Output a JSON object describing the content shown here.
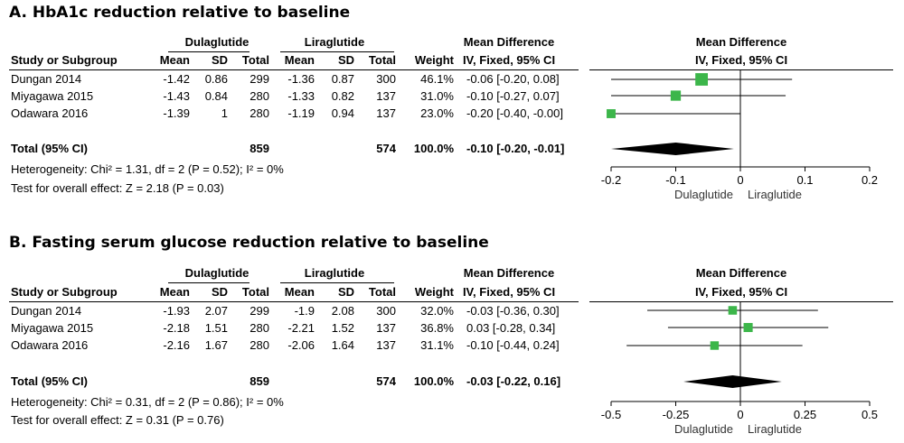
{
  "headers": {
    "group1": "Dulaglutide",
    "group2": "Liraglutide",
    "study": "Study or Subgroup",
    "mean": "Mean",
    "sd": "SD",
    "total": "Total",
    "weight": "Weight",
    "md_title": "Mean Difference",
    "md_method": "IV, Fixed, 95% CI",
    "total_row_label": "Total (95% CI)"
  },
  "chart_data": [
    {
      "type": "forest",
      "title": "A.  HbA1c reduction relative to baseline",
      "studies": [
        {
          "name": "Dungan 2014",
          "d_mean": "-1.42",
          "d_sd": "0.86",
          "d_total": "299",
          "l_mean": "-1.36",
          "l_sd": "0.87",
          "l_total": "300",
          "weight": "46.1%",
          "ci_text": "-0.06 [-0.20, 0.08]",
          "md": -0.06,
          "lo": -0.2,
          "hi": 0.08,
          "w": 46.1
        },
        {
          "name": "Miyagawa 2015",
          "d_mean": "-1.43",
          "d_sd": "0.84",
          "d_total": "280",
          "l_mean": "-1.33",
          "l_sd": "0.82",
          "l_total": "137",
          "weight": "31.0%",
          "ci_text": "-0.10 [-0.27, 0.07]",
          "md": -0.1,
          "lo": -0.27,
          "hi": 0.07,
          "w": 31.0
        },
        {
          "name": "Odawara 2016",
          "d_mean": "-1.39",
          "d_sd": "1",
          "d_total": "280",
          "l_mean": "-1.19",
          "l_sd": "0.94",
          "l_total": "137",
          "weight": "23.0%",
          "ci_text": "-0.20 [-0.40, -0.00]",
          "md": -0.2,
          "lo": -0.4,
          "hi": 0.0,
          "w": 23.0
        }
      ],
      "total": {
        "d_total": "859",
        "l_total": "574",
        "weight": "100.0%",
        "ci_text": "-0.10 [-0.20, -0.01]",
        "md": -0.1,
        "lo": -0.2,
        "hi": -0.01
      },
      "heterogeneity": "Heterogeneity: Chi² = 1.31, df = 2 (P = 0.52); I² = 0%",
      "overall_effect": "Test for overall effect: Z = 2.18 (P = 0.03)",
      "xlim": [
        -0.2,
        0.2
      ],
      "ticks": [
        -0.2,
        -0.1,
        0,
        0.1,
        0.2
      ],
      "tick_labels": [
        "-0.2",
        "-0.1",
        "0",
        "0.1",
        "0.2"
      ],
      "favours_left": "Dulaglutide",
      "favours_right": "Liraglutide"
    },
    {
      "type": "forest",
      "title": "B.  Fasting serum glucose reduction relative to baseline",
      "studies": [
        {
          "name": "Dungan 2014",
          "d_mean": "-1.93",
          "d_sd": "2.07",
          "d_total": "299",
          "l_mean": "-1.9",
          "l_sd": "2.08",
          "l_total": "300",
          "weight": "32.0%",
          "ci_text": "-0.03 [-0.36, 0.30]",
          "md": -0.03,
          "lo": -0.36,
          "hi": 0.3,
          "w": 32.0
        },
        {
          "name": "Miyagawa 2015",
          "d_mean": "-2.18",
          "d_sd": "1.51",
          "d_total": "280",
          "l_mean": "-2.21",
          "l_sd": "1.52",
          "l_total": "137",
          "weight": "36.8%",
          "ci_text": "0.03 [-0.28, 0.34]",
          "md": 0.03,
          "lo": -0.28,
          "hi": 0.34,
          "w": 36.8
        },
        {
          "name": "Odawara 2016",
          "d_mean": "-2.16",
          "d_sd": "1.67",
          "d_total": "280",
          "l_mean": "-2.06",
          "l_sd": "1.64",
          "l_total": "137",
          "weight": "31.1%",
          "ci_text": "-0.10 [-0.44, 0.24]",
          "md": -0.1,
          "lo": -0.44,
          "hi": 0.24,
          "w": 31.1
        }
      ],
      "total": {
        "d_total": "859",
        "l_total": "574",
        "weight": "100.0%",
        "ci_text": "-0.03 [-0.22, 0.16]",
        "md": -0.03,
        "lo": -0.22,
        "hi": 0.16
      },
      "heterogeneity": "Heterogeneity: Chi² = 0.31, df = 2 (P = 0.86); I² = 0%",
      "overall_effect": "Test for overall effect: Z = 0.31 (P = 0.76)",
      "xlim": [
        -0.5,
        0.5
      ],
      "ticks": [
        -0.5,
        -0.25,
        0,
        0.25,
        0.5
      ],
      "tick_labels": [
        "-0.5",
        "-0.25",
        "0",
        "0.25",
        "0.5"
      ],
      "favours_left": "Dulaglutide",
      "favours_right": "Liraglutide"
    }
  ],
  "colors": {
    "marker": "#3cb64a",
    "diamond": "#000000",
    "line": "#000000"
  }
}
